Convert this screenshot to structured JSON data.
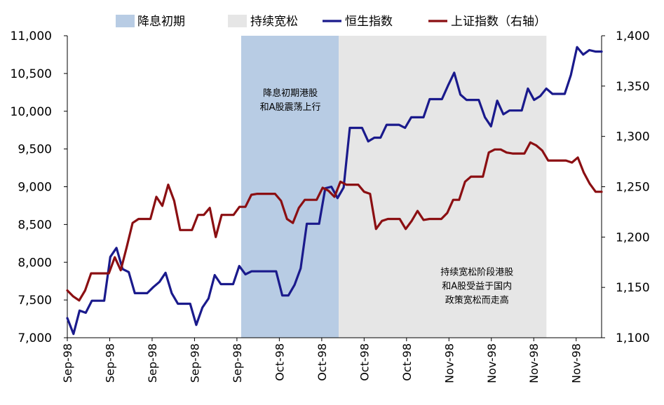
{
  "chart_data": {
    "type": "line",
    "title": "",
    "legend": {
      "placement": "top",
      "items": [
        {
          "label": "降息初期",
          "kind": "band",
          "color": "#b8cce4"
        },
        {
          "label": "持续宽松",
          "kind": "band",
          "color": "#e6e6e6"
        },
        {
          "label": "恒生指数",
          "kind": "line",
          "color": "#1a1a8c"
        },
        {
          "label": "上证指数（右轴）",
          "kind": "line",
          "color": "#8b0f12"
        }
      ]
    },
    "y_left": {
      "ylim": [
        7000,
        11000
      ],
      "ticks": [
        7000,
        7500,
        8000,
        8500,
        9000,
        9500,
        10000,
        10500,
        11000
      ],
      "tick_labels": [
        "7,000",
        "7,500",
        "8,000",
        "8,500",
        "9,000",
        "9,500",
        "10,000",
        "10,500",
        "11,000"
      ]
    },
    "y_right": {
      "ylim": [
        1100,
        1400
      ],
      "ticks": [
        1100,
        1150,
        1200,
        1250,
        1300,
        1350,
        1400
      ],
      "tick_labels": [
        "1,100",
        "1,150",
        "1,200",
        "1,250",
        "1,300",
        "1,350",
        "1,400"
      ]
    },
    "x_index_range": [
      0,
      63
    ],
    "x_ticks": [
      {
        "i": 0,
        "label": "Sep-98"
      },
      {
        "i": 5,
        "label": "Sep-98"
      },
      {
        "i": 10,
        "label": "Sep-98"
      },
      {
        "i": 15,
        "label": "Sep-98"
      },
      {
        "i": 20,
        "label": "Sep-98"
      },
      {
        "i": 25,
        "label": "Oct-98"
      },
      {
        "i": 30,
        "label": "Oct-98"
      },
      {
        "i": 35,
        "label": "Oct-98"
      },
      {
        "i": 40,
        "label": "Oct-98"
      },
      {
        "i": 45,
        "label": "Nov-98"
      },
      {
        "i": 50,
        "label": "Nov-98"
      },
      {
        "i": 55,
        "label": "Nov-98"
      },
      {
        "i": 60,
        "label": "Nov-98"
      }
    ],
    "bands": [
      {
        "label": "降息初期",
        "from": 20.5,
        "to": 32,
        "color": "#b8cce4"
      },
      {
        "label": "持续宽松",
        "from": 32,
        "to": 56.5,
        "color": "#e6e6e6"
      }
    ],
    "annotations": [
      {
        "lines": [
          "降息初期港股",
          "和A股震荡上行"
        ],
        "x": 26.3,
        "y": 10200
      },
      {
        "lines": [
          "持续宽松阶段港股",
          "和A股受益于国内",
          "政策宽松而走高"
        ],
        "x": 48.3,
        "y": 7830
      }
    ],
    "series": [
      {
        "name": "恒生指数",
        "axis": "left",
        "color": "#1a1a8c",
        "values": [
          7260,
          7050,
          7360,
          7330,
          7490,
          7490,
          7490,
          8070,
          8190,
          7910,
          7870,
          7590,
          7590,
          7590,
          7670,
          7740,
          7860,
          7590,
          7450,
          7450,
          7450,
          7170,
          7400,
          7520,
          7830,
          7710,
          7710,
          7710,
          7950,
          7840,
          7880,
          7880,
          7880,
          7880,
          7880,
          7560,
          7560,
          7700,
          7920,
          8510,
          8510,
          8510,
          8980,
          9000,
          8850,
          8990,
          9780,
          9780,
          9780,
          9600,
          9650,
          9650,
          9820,
          9820,
          9820,
          9780,
          9920,
          9920,
          9920,
          10160,
          10160,
          10160,
          10340,
          10510,
          10220,
          10150,
          10150,
          10150,
          9920,
          9800,
          10140,
          9960,
          10010,
          10010,
          10010,
          10300,
          10150,
          10200,
          10300,
          10230,
          10230,
          10230,
          10480,
          10850,
          10750,
          10810,
          10790,
          10790
        ]
      },
      {
        "name": "上证指数（右轴）",
        "axis": "right",
        "color": "#8b0f12",
        "values": [
          1147,
          1141,
          1137,
          1147,
          1164,
          1164,
          1164,
          1164,
          1180,
          1167,
          1190,
          1214,
          1218,
          1218,
          1218,
          1240,
          1231,
          1252,
          1236,
          1207,
          1207,
          1207,
          1222,
          1222,
          1229,
          1200,
          1222,
          1222,
          1222,
          1230,
          1230,
          1242,
          1243,
          1243,
          1243,
          1243,
          1236,
          1218,
          1214,
          1229,
          1237,
          1237,
          1237,
          1249,
          1246,
          1240,
          1255,
          1252,
          1252,
          1252,
          1245,
          1243,
          1208,
          1216,
          1218,
          1218,
          1218,
          1208,
          1216,
          1226,
          1217,
          1218,
          1218,
          1218,
          1224,
          1237,
          1237,
          1255,
          1260,
          1260,
          1260,
          1284,
          1287,
          1287,
          1284,
          1283,
          1283,
          1283,
          1294,
          1291,
          1286,
          1276,
          1276,
          1276,
          1276,
          1274,
          1279,
          1264,
          1253,
          1245,
          1245
        ]
      }
    ]
  }
}
